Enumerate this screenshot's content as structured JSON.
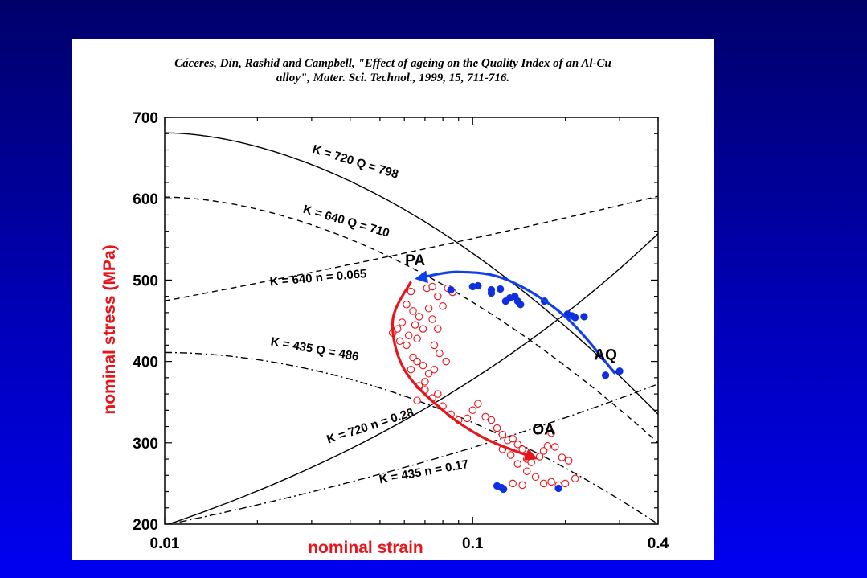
{
  "citation": {
    "line1": "Cáceres, Din, Rashid and Campbell, \"Effect of ageing on the Quality Index of an Al-Cu",
    "line2": "alloy\", Mater. Sci. Technol., 1999, 15, 711-716."
  },
  "chart_data": {
    "type": "scatter",
    "xlabel": "nominal strain",
    "ylabel": "nominal stress (MPa)",
    "xscale": "log",
    "xlim": [
      0.01,
      0.4
    ],
    "ylim": [
      200,
      700
    ],
    "xticks": [
      "0.01",
      "0.1",
      "0.4"
    ],
    "yticks": [
      "200",
      "300",
      "400",
      "500",
      "600",
      "700"
    ],
    "colors": {
      "open_points": "#e8141c",
      "filled_points": "#1030e0",
      "red_arrow": "#e8141c",
      "blue_arrow": "#1040e8",
      "axis_title": "#e8141c"
    },
    "curves": [
      {
        "label": "K = 720 Q = 798",
        "style": "solid",
        "K": 720,
        "Q": 798
      },
      {
        "label": "K = 640 Q = 710",
        "style": "dashed",
        "K": 640,
        "Q": 710
      },
      {
        "label": "K = 435 Q = 486",
        "style": "dashdot",
        "K": 435,
        "Q": 486
      },
      {
        "label": "K = 720 n = 0.28",
        "style": "solid",
        "K": 720,
        "n": 0.28
      },
      {
        "label": "K = 640 n = 0.065",
        "style": "dashed",
        "K": 640,
        "n": 0.065
      },
      {
        "label": "K = 435 n = 0.17",
        "style": "dashdot",
        "K": 435,
        "n": 0.17
      }
    ],
    "region_labels": [
      {
        "text": "PA",
        "x": 0.065,
        "y": 518
      },
      {
        "text": "AQ",
        "x": 0.27,
        "y": 402
      },
      {
        "text": "OA",
        "x": 0.17,
        "y": 310
      }
    ],
    "arrows": [
      {
        "name": "AQ to PA",
        "color": "#1040e8",
        "points": [
          [
            0.29,
            385
          ],
          [
            0.2,
            455
          ],
          [
            0.13,
            500
          ],
          [
            0.09,
            510
          ],
          [
            0.066,
            502
          ]
        ]
      },
      {
        "name": "PA to OA",
        "color": "#e8141c",
        "points": [
          [
            0.063,
            498
          ],
          [
            0.055,
            450
          ],
          [
            0.06,
            390
          ],
          [
            0.08,
            340
          ],
          [
            0.11,
            305
          ],
          [
            0.16,
            281
          ]
        ]
      }
    ],
    "series": [
      {
        "name": "open",
        "marker": "open-circle",
        "points": [
          [
            0.071,
            490
          ],
          [
            0.074,
            492
          ],
          [
            0.077,
            480
          ],
          [
            0.083,
            490
          ],
          [
            0.086,
            485
          ],
          [
            0.063,
            486
          ],
          [
            0.061,
            470
          ],
          [
            0.064,
            462
          ],
          [
            0.067,
            455
          ],
          [
            0.059,
            448
          ],
          [
            0.057,
            440
          ],
          [
            0.055,
            435
          ],
          [
            0.058,
            425
          ],
          [
            0.061,
            420
          ],
          [
            0.066,
            428
          ],
          [
            0.069,
            440
          ],
          [
            0.072,
            465
          ],
          [
            0.074,
            452
          ],
          [
            0.077,
            440
          ],
          [
            0.065,
            445
          ],
          [
            0.062,
            432
          ],
          [
            0.064,
            405
          ],
          [
            0.066,
            400
          ],
          [
            0.069,
            395
          ],
          [
            0.072,
            385
          ],
          [
            0.075,
            390
          ],
          [
            0.063,
            390
          ],
          [
            0.067,
            370
          ],
          [
            0.07,
            365
          ],
          [
            0.074,
            355
          ],
          [
            0.077,
            360
          ],
          [
            0.08,
            345
          ],
          [
            0.085,
            335
          ],
          [
            0.09,
            328
          ],
          [
            0.096,
            330
          ],
          [
            0.1,
            340
          ],
          [
            0.104,
            348
          ],
          [
            0.11,
            332
          ],
          [
            0.115,
            328
          ],
          [
            0.12,
            318
          ],
          [
            0.125,
            310
          ],
          [
            0.13,
            303
          ],
          [
            0.135,
            305
          ],
          [
            0.14,
            298
          ],
          [
            0.145,
            292
          ],
          [
            0.15,
            280
          ],
          [
            0.155,
            276
          ],
          [
            0.165,
            283
          ],
          [
            0.17,
            290
          ],
          [
            0.175,
            296
          ],
          [
            0.18,
            312
          ],
          [
            0.185,
            295
          ],
          [
            0.195,
            282
          ],
          [
            0.205,
            278
          ],
          [
            0.125,
            292
          ],
          [
            0.133,
            285
          ],
          [
            0.14,
            274
          ],
          [
            0.15,
            265
          ],
          [
            0.16,
            258
          ],
          [
            0.17,
            250
          ],
          [
            0.18,
            252
          ],
          [
            0.19,
            248
          ],
          [
            0.2,
            250
          ],
          [
            0.135,
            250
          ],
          [
            0.145,
            248
          ],
          [
            0.215,
            256
          ],
          [
            0.07,
            375
          ],
          [
            0.066,
            352
          ],
          [
            0.078,
            410
          ],
          [
            0.082,
            400
          ],
          [
            0.075,
            420
          ],
          [
            0.08,
            468
          ]
        ]
      },
      {
        "name": "filled",
        "marker": "filled-circle",
        "points": [
          [
            0.085,
            488
          ],
          [
            0.1,
            492
          ],
          [
            0.104,
            493
          ],
          [
            0.115,
            488
          ],
          [
            0.115,
            484
          ],
          [
            0.123,
            489
          ],
          [
            0.128,
            474
          ],
          [
            0.132,
            478
          ],
          [
            0.137,
            480
          ],
          [
            0.14,
            474
          ],
          [
            0.143,
            470
          ],
          [
            0.171,
            474
          ],
          [
            0.203,
            458
          ],
          [
            0.21,
            456
          ],
          [
            0.215,
            454
          ],
          [
            0.23,
            455
          ],
          [
            0.27,
            383
          ],
          [
            0.3,
            388
          ],
          [
            0.12,
            247
          ],
          [
            0.124,
            245
          ],
          [
            0.126,
            243
          ],
          [
            0.19,
            244
          ]
        ]
      }
    ]
  }
}
